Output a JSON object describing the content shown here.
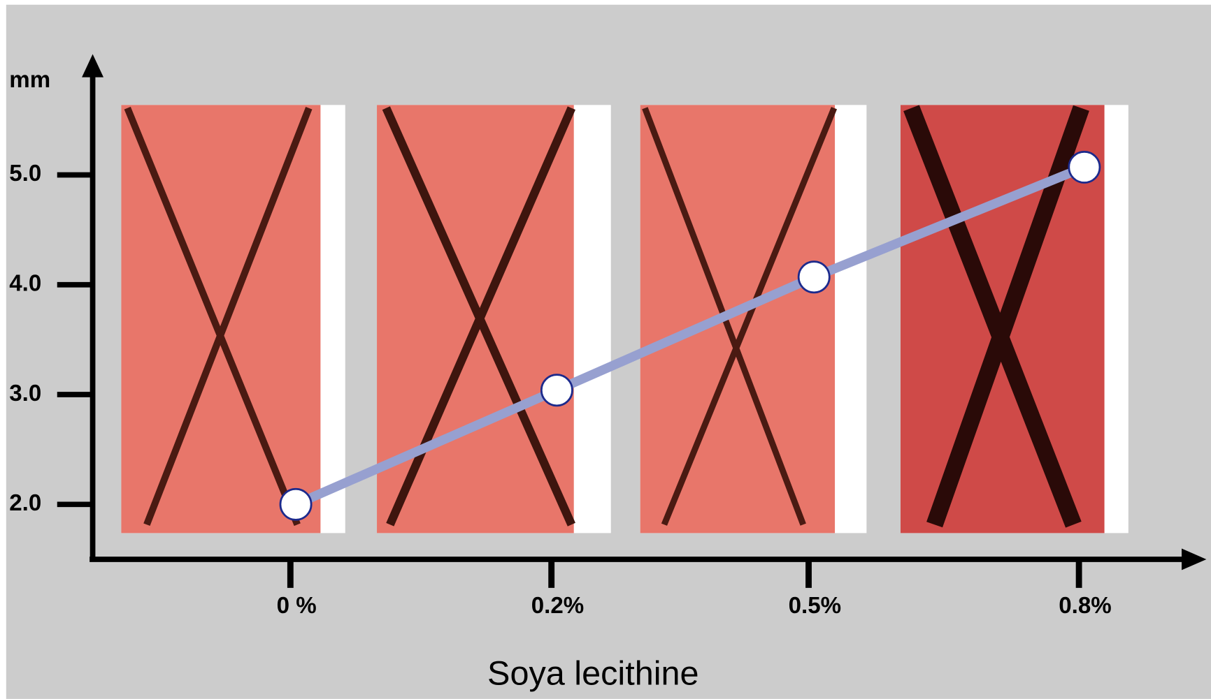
{
  "chart_data": {
    "type": "line",
    "x_label": "Soya lecithine",
    "y_label": "mm",
    "categories": [
      "0 %",
      "0.2%",
      "0.5%",
      "0.8%"
    ],
    "series": [
      {
        "color": "#97a0d0",
        "values": [
          2.0,
          3.04,
          4.07,
          5.07
        ]
      }
    ],
    "ylim": [
      1.5,
      6.1
    ],
    "yticks": [
      {
        "value": 2,
        "label": "2.0"
      },
      {
        "value": 3,
        "label": "3.0"
      },
      {
        "value": 4,
        "label": "4.0"
      },
      {
        "value": 5,
        "label": "5.0"
      }
    ]
  }
}
